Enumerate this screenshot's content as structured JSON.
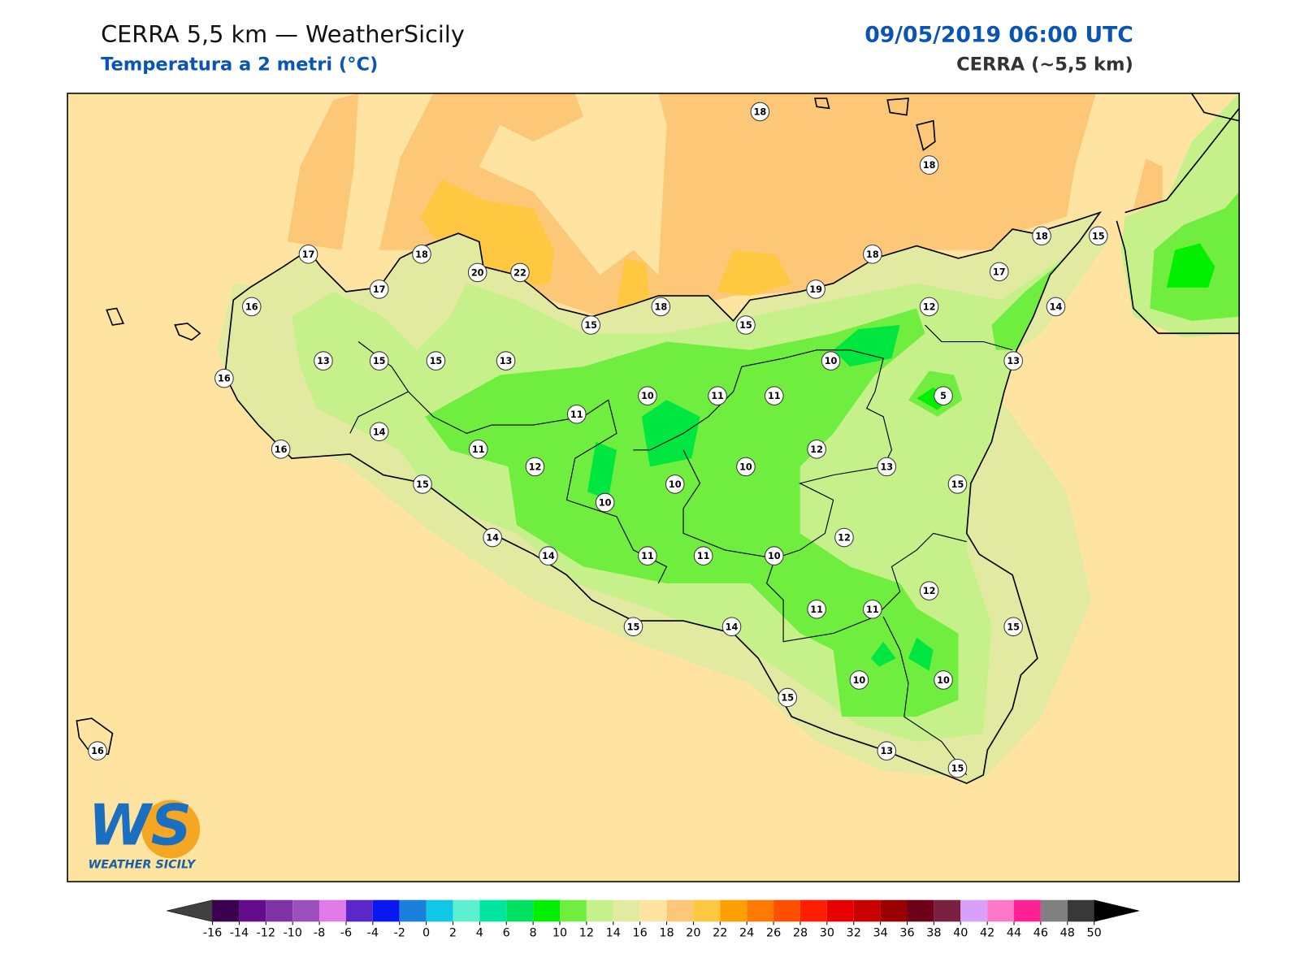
{
  "header": {
    "title": "CERRA 5,5 km — WeatherSicily",
    "subtitle": "Temperatura a 2 metri (°C)",
    "datetime": "09/05/2019 06:00 UTC",
    "model": "CERRA (~5,5 km)"
  },
  "stations": [
    18,
    18,
    17,
    18,
    20,
    22,
    17,
    16,
    15,
    18,
    15,
    19,
    18,
    18,
    15,
    17,
    12,
    14,
    13,
    15,
    15,
    13,
    10,
    13,
    16,
    10,
    11,
    11,
    5,
    11,
    14,
    11,
    16,
    12,
    12,
    10,
    13,
    15,
    10,
    15,
    10,
    14,
    12,
    14,
    11,
    11,
    10,
    12,
    11,
    11,
    15,
    14,
    15,
    10,
    10,
    15,
    16,
    13,
    15
  ],
  "colorbar": {
    "ticks": [
      -16,
      -14,
      -12,
      -10,
      -8,
      -6,
      -4,
      -2,
      0,
      2,
      4,
      6,
      8,
      10,
      12,
      14,
      16,
      18,
      20,
      22,
      24,
      26,
      28,
      30,
      32,
      34,
      36,
      38,
      40,
      42,
      44,
      46,
      48,
      50
    ],
    "colors": [
      "#3c0050",
      "#640c8c",
      "#7d32a5",
      "#9c50bb",
      "#e07ae8",
      "#5a28c8",
      "#0a18f0",
      "#1a80dc",
      "#10c8e6",
      "#5cf0d0",
      "#00e6a0",
      "#00e060",
      "#00f000",
      "#70ee40",
      "#c6f08a",
      "#e1eaa0",
      "#fee4a0",
      "#fcc878",
      "#ffc840",
      "#ffa000",
      "#ff7a00",
      "#ff5000",
      "#ff1e00",
      "#e60000",
      "#c80000",
      "#9a0000",
      "#6e0018",
      "#7a2040",
      "#d8a0f8",
      "#ff78c8",
      "#ff2096",
      "#808080",
      "#383838"
    ],
    "under_color": "#404040",
    "over_color": "#000000"
  },
  "logo": {
    "mark": "WS",
    "name": "WEATHER SICILY"
  }
}
